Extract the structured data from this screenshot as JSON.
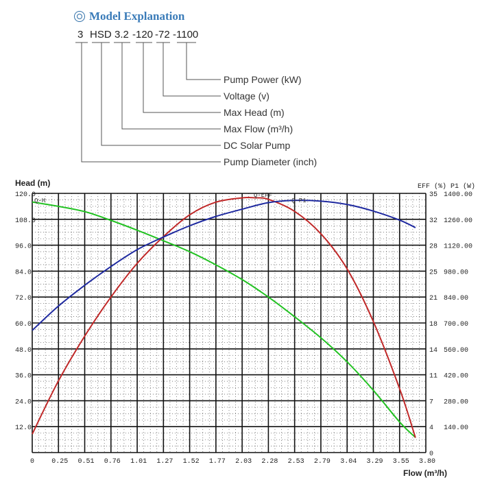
{
  "header": {
    "title": "Model Explanation",
    "title_icon": "double-circle-icon",
    "code_parts": [
      "3",
      "HSD",
      "3.2",
      "-120",
      "-72",
      "-1100"
    ],
    "explanations": [
      "Pump Power (kW)",
      "Voltage (v)",
      "Max Head (m)",
      "Max Flow (m³/h)",
      "DC Solar Pump",
      "Pump Diameter (inch)"
    ]
  },
  "chart_data": {
    "type": "line",
    "ylabel_left": "Head (m)",
    "ylabel_right": "EFF (%)  P1 (W)",
    "xlabel": "Flow (m³/h)",
    "x_ticks": [
      "0",
      "0.25",
      "0.51",
      "0.76",
      "1.01",
      "1.27",
      "1.52",
      "1.77",
      "2.03",
      "2.28",
      "2.53",
      "2.79",
      "3.04",
      "3.29",
      "3.55",
      "3.80"
    ],
    "y_left_ticks": [
      "120.0",
      "108.0",
      "96.0",
      "84.0",
      "72.0",
      "60.0",
      "48.0",
      "36.0",
      "24.0",
      "12.0"
    ],
    "y_eff_ticks": [
      "35",
      "32",
      "28",
      "25",
      "21",
      "18",
      "14",
      "11",
      "7",
      "4",
      "0"
    ],
    "y_p1_ticks": [
      "1400.00",
      "1260.00",
      "1120.00",
      "980.00",
      "840.00",
      "700.00",
      "560.00",
      "420.00",
      "280.00",
      "140.00"
    ],
    "xlim": [
      0,
      3.8
    ],
    "ylim_left": [
      0,
      120
    ],
    "ylim_eff": [
      0,
      35
    ],
    "ylim_p1": [
      0,
      1400
    ],
    "series": [
      {
        "name": "Q-H",
        "color": "#22c222",
        "axis": "head",
        "x": [
          0,
          0.25,
          0.51,
          0.76,
          1.01,
          1.27,
          1.52,
          1.77,
          2.03,
          2.28,
          2.53,
          2.79,
          3.04,
          3.29,
          3.55,
          3.7
        ],
        "y": [
          116,
          114,
          111.5,
          107.5,
          103,
          98,
          93,
          87,
          80,
          72,
          63,
          53,
          42,
          29,
          14,
          7
        ]
      },
      {
        "name": "Q-EFF",
        "color": "#c02828",
        "axis": "eff",
        "x": [
          0,
          0.25,
          0.51,
          0.76,
          1.01,
          1.27,
          1.52,
          1.77,
          2.03,
          2.15,
          2.28,
          2.53,
          2.79,
          3.04,
          3.29,
          3.55,
          3.7
        ],
        "y": [
          2.5,
          9.6,
          15.8,
          21,
          25.5,
          29.2,
          32.1,
          33.8,
          34.4,
          34.4,
          34.2,
          32.6,
          29.5,
          24.8,
          17.8,
          8.5,
          2
        ]
      },
      {
        "name": "Q-P1",
        "color": "#1f2aa0",
        "axis": "p1",
        "x": [
          0,
          0.25,
          0.51,
          0.76,
          1.01,
          1.27,
          1.52,
          1.77,
          2.03,
          2.28,
          2.53,
          2.79,
          3.04,
          3.29,
          3.55,
          3.7
        ],
        "y": [
          660,
          790,
          905,
          1005,
          1095,
          1165,
          1225,
          1275,
          1315,
          1350,
          1362,
          1358,
          1340,
          1305,
          1255,
          1215
        ]
      }
    ],
    "curve_tags": [
      "Q-H",
      "Q-EFF",
      "Q-P1"
    ],
    "grid": true
  }
}
